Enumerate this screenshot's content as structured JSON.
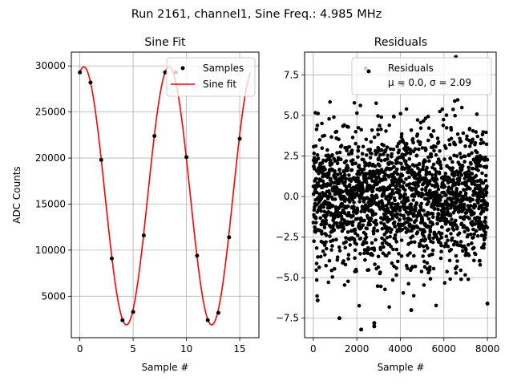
{
  "figure": {
    "suptitle": "Run 2161, channel1, Sine Freq.: 4.985 MHz"
  },
  "chart_data": [
    {
      "type": "line",
      "title": "Sine Fit",
      "xlabel": "Sample #",
      "ylabel": "ADC Counts",
      "xlim": [
        -0.8,
        16.8
      ],
      "ylim": [
        500,
        31500
      ],
      "xticks": [
        0,
        5,
        10,
        15
      ],
      "yticks": [
        5000,
        10000,
        15000,
        20000,
        25000,
        30000
      ],
      "grid": true,
      "legend_position": "top-right",
      "series": [
        {
          "name": "Samples",
          "kind": "scatter",
          "color": "#000000",
          "x": [
            0,
            1,
            2,
            3,
            4,
            5,
            6,
            7,
            8,
            9,
            10,
            11,
            12,
            13,
            14,
            15
          ],
          "y": [
            29300,
            28200,
            19800,
            9100,
            2400,
            3300,
            11600,
            22400,
            29300,
            29300,
            20100,
            9400,
            2400,
            3200,
            11400,
            22100
          ]
        },
        {
          "name": "Sine fit",
          "kind": "line",
          "color": "#ff0000",
          "fit": {
            "offset": 15900,
            "amplitude": 14000,
            "period_samples": 8.0,
            "peak_at_sample": 0.37,
            "x_start": 0,
            "x_end": 16
          }
        }
      ]
    },
    {
      "type": "scatter",
      "title": "Residuals",
      "xlabel": "Sample #",
      "ylabel": "",
      "xlim": [
        -400,
        8400
      ],
      "ylim": [
        -8.7,
        8.9
      ],
      "xticks": [
        0,
        2000,
        4000,
        6000,
        8000
      ],
      "yticks": [
        -7.5,
        -5.0,
        -2.5,
        0.0,
        2.5,
        5.0,
        7.5
      ],
      "grid": true,
      "legend_position": "top-right",
      "legend_lines": [
        "Residuals",
        "μ = 0.0, σ = 2.09"
      ],
      "series": [
        {
          "name": "Residuals",
          "color": "#000000",
          "mean": 0.0,
          "sigma": 2.09,
          "n_points": 8000,
          "x_range": [
            0,
            8000
          ],
          "notable_points": [
            {
              "x": 2200,
              "y": -8.2
            },
            {
              "x": 2800,
              "y": -8.0
            },
            {
              "x": 2800,
              "y": -7.8
            },
            {
              "x": 1200,
              "y": -7.5
            },
            {
              "x": 6550,
              "y": 8.6
            },
            {
              "x": 2400,
              "y": 7.9
            },
            {
              "x": 4500,
              "y": -7.0
            },
            {
              "x": 8000,
              "y": -6.6
            },
            {
              "x": 200,
              "y": -6.4
            }
          ]
        }
      ]
    }
  ]
}
